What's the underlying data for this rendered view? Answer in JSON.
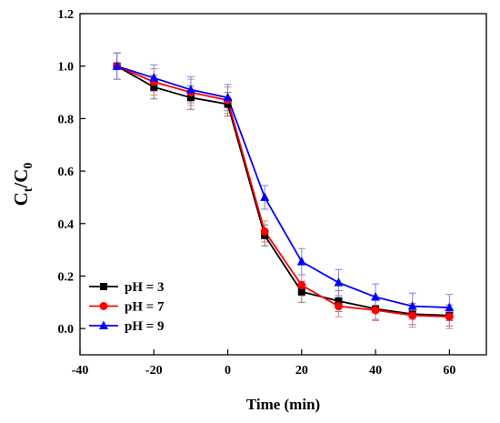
{
  "chart_data": {
    "type": "line",
    "xlabel": "Time (min)",
    "ylabel": {
      "main": "C",
      "sub1": "t",
      "sep": "/C",
      "sub2": "0"
    },
    "xlim": [
      -40,
      70
    ],
    "ylim": [
      -0.1,
      1.2
    ],
    "x_ticks": [
      -40,
      -20,
      0,
      20,
      40,
      60
    ],
    "y_ticks": [
      0.0,
      0.2,
      0.4,
      0.6,
      0.8,
      1.0,
      1.2
    ],
    "x": [
      -30,
      -20,
      -10,
      0,
      10,
      20,
      30,
      40,
      50,
      60
    ],
    "legend_position": "bottom-left",
    "series": [
      {
        "name": "pH = 3",
        "color": "#000000",
        "error_color": "#7a7a7a",
        "marker": "square",
        "values": [
          1.0,
          0.92,
          0.88,
          0.855,
          0.355,
          0.14,
          0.105,
          0.075,
          0.055,
          0.05
        ],
        "errors": [
          0.05,
          0.045,
          0.045,
          0.045,
          0.04,
          0.04,
          0.04,
          0.04,
          0.04,
          0.04
        ]
      },
      {
        "name": "pH = 7",
        "color": "#ff0000",
        "error_color": "#e08080",
        "marker": "circle",
        "values": [
          1.0,
          0.94,
          0.9,
          0.87,
          0.37,
          0.165,
          0.085,
          0.07,
          0.05,
          0.045
        ],
        "errors": [
          0.05,
          0.05,
          0.05,
          0.05,
          0.04,
          0.04,
          0.04,
          0.04,
          0.045,
          0.045
        ]
      },
      {
        "name": "pH = 9",
        "color": "#0000ff",
        "error_color": "#8080e0",
        "marker": "triangle",
        "values": [
          1.0,
          0.955,
          0.91,
          0.88,
          0.5,
          0.255,
          0.175,
          0.12,
          0.085,
          0.08
        ],
        "errors": [
          0.05,
          0.05,
          0.05,
          0.05,
          0.045,
          0.05,
          0.05,
          0.05,
          0.05,
          0.05
        ]
      }
    ]
  }
}
